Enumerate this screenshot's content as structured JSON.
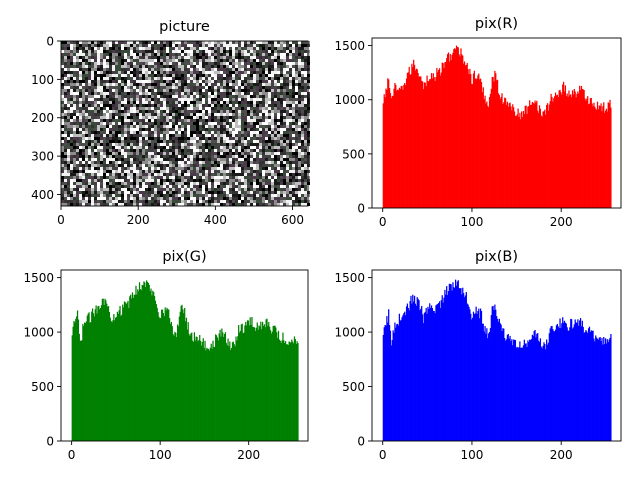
{
  "colors": {
    "red": "#ff0000",
    "green": "#008000",
    "blue": "#0000ff",
    "axis": "#000000"
  },
  "chart_data": [
    {
      "type": "heatmap",
      "title": "picture",
      "description_values": "noise image, 640 wide by 430 tall",
      "image_width": 640,
      "image_height": 430,
      "xlim": [
        0,
        640
      ],
      "ylim": [
        430,
        0
      ],
      "xticks": [
        0,
        200,
        400,
        600
      ],
      "yticks": [
        0,
        100,
        200,
        300,
        400
      ],
      "xlabel": "",
      "ylabel": ""
    },
    {
      "type": "bar",
      "title": "pix(R)",
      "color": "#ff0000",
      "xlim": [
        -12,
        267
      ],
      "ylim": [
        0,
        1570
      ],
      "xticks": [
        0,
        100,
        200
      ],
      "yticks": [
        0,
        500,
        1000,
        1500
      ],
      "anchors": [
        [
          0,
          950
        ],
        [
          3,
          1100
        ],
        [
          6,
          1180
        ],
        [
          9,
          1020
        ],
        [
          13,
          1100
        ],
        [
          18,
          1060
        ],
        [
          22,
          1120
        ],
        [
          27,
          1220
        ],
        [
          31,
          1280
        ],
        [
          35,
          1330
        ],
        [
          38,
          1270
        ],
        [
          42,
          1240
        ],
        [
          45,
          1130
        ],
        [
          48,
          1170
        ],
        [
          52,
          1220
        ],
        [
          56,
          1200
        ],
        [
          60,
          1240
        ],
        [
          64,
          1270
        ],
        [
          68,
          1320
        ],
        [
          72,
          1390
        ],
        [
          76,
          1420
        ],
        [
          80,
          1460
        ],
        [
          84,
          1450
        ],
        [
          88,
          1410
        ],
        [
          92,
          1360
        ],
        [
          96,
          1270
        ],
        [
          99,
          1170
        ],
        [
          102,
          1220
        ],
        [
          106,
          1210
        ],
        [
          110,
          1140
        ],
        [
          114,
          1010
        ],
        [
          118,
          970
        ],
        [
          122,
          1180
        ],
        [
          125,
          1240
        ],
        [
          129,
          1100
        ],
        [
          133,
          1020
        ],
        [
          138,
          950
        ],
        [
          142,
          960
        ],
        [
          146,
          920
        ],
        [
          150,
          870
        ],
        [
          155,
          860
        ],
        [
          160,
          900
        ],
        [
          165,
          980
        ],
        [
          168,
          1010
        ],
        [
          172,
          970
        ],
        [
          176,
          890
        ],
        [
          180,
          860
        ],
        [
          184,
          920
        ],
        [
          188,
          1010
        ],
        [
          193,
          1040
        ],
        [
          198,
          1080
        ],
        [
          202,
          1120
        ],
        [
          206,
          1060
        ],
        [
          211,
          1070
        ],
        [
          216,
          1060
        ],
        [
          220,
          1110
        ],
        [
          225,
          1040
        ],
        [
          230,
          1010
        ],
        [
          235,
          960
        ],
        [
          240,
          940
        ],
        [
          245,
          920
        ],
        [
          250,
          930
        ],
        [
          255,
          950
        ]
      ]
    },
    {
      "type": "bar",
      "title": "pix(G)",
      "color": "#008000",
      "xlim": [
        -12,
        267
      ],
      "ylim": [
        0,
        1570
      ],
      "xticks": [
        0,
        100,
        200
      ],
      "yticks": [
        0,
        500,
        1000,
        1500
      ],
      "anchors": [
        [
          0,
          950
        ],
        [
          3,
          1100
        ],
        [
          6,
          1170
        ],
        [
          9,
          880
        ],
        [
          13,
          1080
        ],
        [
          18,
          1120
        ],
        [
          22,
          1150
        ],
        [
          27,
          1210
        ],
        [
          31,
          1260
        ],
        [
          35,
          1310
        ],
        [
          38,
          1260
        ],
        [
          42,
          1200
        ],
        [
          45,
          1130
        ],
        [
          48,
          1160
        ],
        [
          52,
          1210
        ],
        [
          56,
          1190
        ],
        [
          60,
          1240
        ],
        [
          64,
          1270
        ],
        [
          68,
          1330
        ],
        [
          72,
          1380
        ],
        [
          76,
          1420
        ],
        [
          80,
          1450
        ],
        [
          84,
          1440
        ],
        [
          88,
          1400
        ],
        [
          92,
          1340
        ],
        [
          96,
          1260
        ],
        [
          99,
          1160
        ],
        [
          102,
          1200
        ],
        [
          106,
          1200
        ],
        [
          110,
          1150
        ],
        [
          114,
          1000
        ],
        [
          118,
          960
        ],
        [
          122,
          1210
        ],
        [
          125,
          1250
        ],
        [
          129,
          1100
        ],
        [
          133,
          1000
        ],
        [
          138,
          950
        ],
        [
          142,
          960
        ],
        [
          146,
          920
        ],
        [
          150,
          870
        ],
        [
          155,
          870
        ],
        [
          160,
          900
        ],
        [
          165,
          960
        ],
        [
          168,
          1000
        ],
        [
          172,
          960
        ],
        [
          176,
          900
        ],
        [
          180,
          870
        ],
        [
          184,
          920
        ],
        [
          188,
          1020
        ],
        [
          193,
          1040
        ],
        [
          198,
          1080
        ],
        [
          202,
          1110
        ],
        [
          206,
          1050
        ],
        [
          211,
          1060
        ],
        [
          216,
          1060
        ],
        [
          220,
          1120
        ],
        [
          225,
          1040
        ],
        [
          230,
          1000
        ],
        [
          235,
          960
        ],
        [
          240,
          930
        ],
        [
          245,
          910
        ],
        [
          250,
          920
        ],
        [
          255,
          950
        ]
      ]
    },
    {
      "type": "bar",
      "title": "pix(B)",
      "color": "#0000ff",
      "xlim": [
        -12,
        267
      ],
      "ylim": [
        0,
        1570
      ],
      "xticks": [
        0,
        100,
        200
      ],
      "yticks": [
        0,
        500,
        1000,
        1500
      ],
      "anchors": [
        [
          0,
          950
        ],
        [
          3,
          1090
        ],
        [
          6,
          1160
        ],
        [
          9,
          900
        ],
        [
          13,
          1080
        ],
        [
          18,
          1120
        ],
        [
          22,
          1160
        ],
        [
          27,
          1220
        ],
        [
          31,
          1280
        ],
        [
          35,
          1330
        ],
        [
          38,
          1270
        ],
        [
          42,
          1220
        ],
        [
          45,
          1130
        ],
        [
          48,
          1170
        ],
        [
          52,
          1210
        ],
        [
          56,
          1190
        ],
        [
          60,
          1240
        ],
        [
          64,
          1270
        ],
        [
          68,
          1330
        ],
        [
          72,
          1390
        ],
        [
          76,
          1420
        ],
        [
          80,
          1460
        ],
        [
          84,
          1440
        ],
        [
          88,
          1400
        ],
        [
          92,
          1350
        ],
        [
          96,
          1270
        ],
        [
          99,
          1160
        ],
        [
          102,
          1200
        ],
        [
          106,
          1210
        ],
        [
          110,
          1150
        ],
        [
          114,
          1010
        ],
        [
          118,
          960
        ],
        [
          122,
          1200
        ],
        [
          125,
          1250
        ],
        [
          129,
          1100
        ],
        [
          133,
          1010
        ],
        [
          138,
          950
        ],
        [
          142,
          960
        ],
        [
          146,
          920
        ],
        [
          150,
          870
        ],
        [
          155,
          860
        ],
        [
          160,
          900
        ],
        [
          165,
          970
        ],
        [
          168,
          1010
        ],
        [
          172,
          960
        ],
        [
          176,
          890
        ],
        [
          180,
          860
        ],
        [
          184,
          920
        ],
        [
          188,
          1010
        ],
        [
          193,
          1040
        ],
        [
          198,
          1080
        ],
        [
          202,
          1110
        ],
        [
          206,
          1060
        ],
        [
          211,
          1070
        ],
        [
          216,
          1060
        ],
        [
          220,
          1120
        ],
        [
          225,
          1040
        ],
        [
          230,
          1010
        ],
        [
          235,
          960
        ],
        [
          240,
          930
        ],
        [
          245,
          910
        ],
        [
          250,
          930
        ],
        [
          255,
          950
        ]
      ]
    }
  ]
}
